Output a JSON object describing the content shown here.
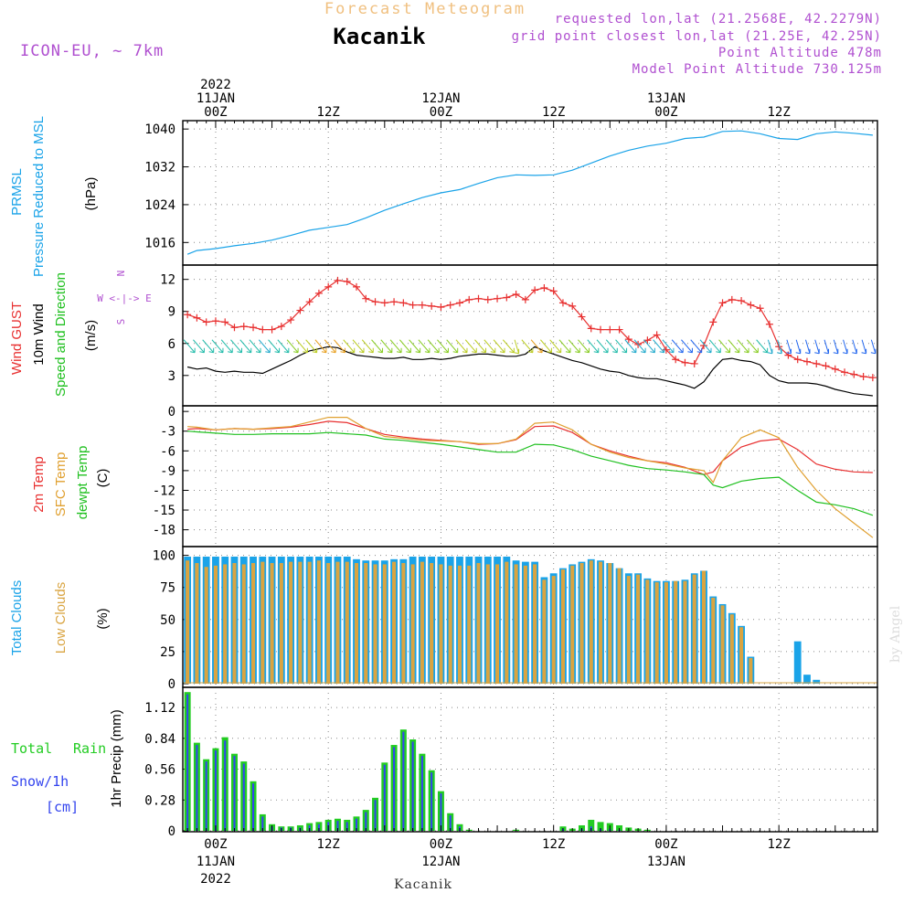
{
  "header": {
    "title": "Forecast Meteogram",
    "location": "Kacanik",
    "model": "ICON-EU, ~ 7km",
    "requested": "requested lon,lat (21.2568E, 42.2279N)",
    "grid_point": "grid point closest lon,lat (21.25E, 42.25N)",
    "point_alt": "Point Altitude 478m",
    "model_alt": "Model Point Altitude 730.125m",
    "footer_location": "Kacanik",
    "watermark": "by Angel"
  },
  "colors": {
    "pressure": "#1aa3e8",
    "gust": "#e83030",
    "wind": "#000000",
    "temp2m": "#e83030",
    "sfctemp": "#e0a030",
    "dewpt": "#20c020",
    "total_clouds": "#1aa3e8",
    "low_clouds": "#d9a441",
    "rain": "#22cc22",
    "snow": "#3344ee",
    "title": "#f0c080",
    "info": "#b050d0"
  },
  "time_axis": {
    "top_labels": [
      {
        "t": 0,
        "lines": [
          "2022",
          "11JAN",
          "00Z"
        ]
      },
      {
        "t": 12,
        "lines": [
          "12Z"
        ]
      },
      {
        "t": 24,
        "lines": [
          "12JAN",
          "00Z"
        ]
      },
      {
        "t": 36,
        "lines": [
          "12Z"
        ]
      },
      {
        "t": 48,
        "lines": [
          "13JAN",
          "00Z"
        ]
      },
      {
        "t": 60,
        "lines": [
          "12Z"
        ]
      }
    ],
    "bottom_labels": [
      {
        "t": 0,
        "lines": [
          "00Z",
          "11JAN",
          "2022"
        ]
      },
      {
        "t": 12,
        "lines": [
          "12Z"
        ]
      },
      {
        "t": 24,
        "lines": [
          "00Z",
          "12JAN"
        ]
      },
      {
        "t": 36,
        "lines": [
          "12Z"
        ]
      },
      {
        "t": 48,
        "lines": [
          "00Z",
          "13JAN"
        ]
      },
      {
        "t": 60,
        "lines": [
          "12Z"
        ]
      }
    ]
  },
  "chart_data": [
    {
      "type": "line",
      "title": "PRMSL Pressure Reduced to MSL",
      "ylabel": "(hPa)",
      "label_lines": [
        "PRMSL",
        "Pressure Reduced to MSL"
      ],
      "yticks": [
        1016,
        1024,
        1032,
        1040
      ],
      "ylim": [
        1012,
        1041
      ],
      "x": [
        -3,
        -2,
        0,
        2,
        4,
        6,
        8,
        10,
        12,
        14,
        16,
        18,
        20,
        22,
        24,
        26,
        28,
        30,
        32,
        34,
        36,
        38,
        40,
        42,
        44,
        46,
        48,
        50,
        52,
        54,
        56,
        58,
        60,
        62,
        64,
        66,
        68,
        70
      ],
      "series": [
        {
          "name": "PRMSL",
          "values": [
            1013.5,
            1014.3,
            1014.7,
            1015.3,
            1015.8,
            1016.5,
            1017.5,
            1018.6,
            1019.2,
            1019.8,
            1021.2,
            1022.8,
            1024.2,
            1025.5,
            1026.5,
            1027.2,
            1028.5,
            1029.7,
            1030.3,
            1030.2,
            1030.3,
            1031.3,
            1032.8,
            1034.3,
            1035.5,
            1036.4,
            1037.0,
            1038.0,
            1038.3,
            1039.5,
            1039.6,
            1039.0,
            1038.0,
            1037.8,
            1039.0,
            1039.4,
            1039.1,
            1038.7
          ]
        }
      ]
    },
    {
      "type": "line",
      "title": "Wind GUST / 10m Wind Speed and Direction",
      "ylabel": "(m/s)",
      "label_lines": [
        "Wind GUST",
        "10m Wind",
        "Speed and Direction"
      ],
      "compass": [
        "N",
        "W <-|-> E",
        "S"
      ],
      "yticks": [
        3,
        6,
        9,
        12
      ],
      "ylim": [
        0.5,
        13
      ],
      "x": [
        -3,
        -2,
        -1,
        0,
        1,
        2,
        3,
        4,
        5,
        6,
        7,
        8,
        9,
        10,
        11,
        12,
        13,
        14,
        15,
        16,
        17,
        18,
        19,
        20,
        21,
        22,
        23,
        24,
        25,
        26,
        27,
        28,
        29,
        30,
        31,
        32,
        33,
        34,
        35,
        36,
        37,
        38,
        39,
        40,
        41,
        42,
        43,
        44,
        45,
        46,
        47,
        48,
        49,
        50,
        51,
        52,
        53,
        54,
        55,
        56,
        57,
        58,
        59,
        60,
        61,
        62,
        63,
        64,
        65,
        66,
        67,
        68,
        69,
        70
      ],
      "series": [
        {
          "name": "Wind GUST",
          "values": [
            8.7,
            8.4,
            8.0,
            8.1,
            8.0,
            7.5,
            7.6,
            7.5,
            7.3,
            7.3,
            7.6,
            8.2,
            9.1,
            9.9,
            10.7,
            11.3,
            11.9,
            11.8,
            11.3,
            10.2,
            9.9,
            9.8,
            9.9,
            9.8,
            9.6,
            9.6,
            9.5,
            9.4,
            9.6,
            9.8,
            10.1,
            10.2,
            10.1,
            10.2,
            10.3,
            10.6,
            10.1,
            11.0,
            11.2,
            10.9,
            9.8,
            9.5,
            8.5,
            7.4,
            7.3,
            7.3,
            7.3,
            6.4,
            5.9,
            6.3,
            6.8,
            5.4,
            4.5,
            4.2,
            4.1,
            5.8,
            8.0,
            9.8,
            10.1,
            10.0,
            9.6,
            9.3,
            7.8,
            5.7,
            4.9,
            4.5,
            4.3,
            4.1,
            3.9,
            3.6,
            3.3,
            3.1,
            2.9,
            2.8
          ]
        },
        {
          "name": "10m Wind",
          "values": [
            3.8,
            3.6,
            3.7,
            3.4,
            3.3,
            3.4,
            3.3,
            3.3,
            3.2,
            3.6,
            4.0,
            4.4,
            4.9,
            5.3,
            5.5,
            5.7,
            5.6,
            5.2,
            4.9,
            4.8,
            4.7,
            4.6,
            4.6,
            4.7,
            4.5,
            4.5,
            4.6,
            4.5,
            4.6,
            4.8,
            4.9,
            5.0,
            5.0,
            4.9,
            4.8,
            4.8,
            5.0,
            5.7,
            5.3,
            5.0,
            4.7,
            4.4,
            4.2,
            3.9,
            3.6,
            3.4,
            3.3,
            3.0,
            2.8,
            2.7,
            2.7,
            2.5,
            2.3,
            2.1,
            1.8,
            2.4,
            3.6,
            4.5,
            4.6,
            4.4,
            4.3,
            4.0,
            3.0,
            2.5,
            2.3,
            2.3,
            2.3,
            2.2,
            2.0,
            1.7,
            1.5,
            1.3,
            1.2,
            1.1
          ]
        }
      ],
      "wind_barb_dir": [
        "NW",
        "NW",
        "NW",
        "NW",
        "NW",
        "NW",
        "NW",
        "NW",
        "NW",
        "NW",
        "NW",
        "NW",
        "NW",
        "NW",
        "NW",
        "NW",
        "NW",
        "NW",
        "NW",
        "NW",
        "NW",
        "NW",
        "NW",
        "NW",
        "NW",
        "NW",
        "NW",
        "NW",
        "NW",
        "NW",
        "NW",
        "NW",
        "NW",
        "NW",
        "NW",
        "N",
        "NW",
        "NW",
        "NW",
        "NW",
        "NW",
        "NW",
        "NW",
        "NW",
        "NW",
        "NW",
        "NW",
        "NW",
        "NW",
        "NW",
        "NW",
        "NW",
        "NW",
        "NW",
        "NW",
        "NW",
        "NW",
        "NW",
        "NW",
        "NW",
        "NW",
        "NW",
        "N",
        "N",
        "N",
        "N",
        "N",
        "N",
        "N",
        "N",
        "N",
        "N",
        "N",
        "N"
      ]
    },
    {
      "type": "line",
      "title": "2m Temp / SFC Temp / dewpt Temp",
      "ylabel": "(C)",
      "label_lines": [
        "2m Temp",
        "SFC Temp",
        "dewpt Temp"
      ],
      "yticks": [
        0,
        -3,
        -6,
        -9,
        -12,
        -15,
        -18
      ],
      "ylim": [
        -20,
        0.3
      ],
      "x": [
        -3,
        -2,
        0,
        2,
        4,
        6,
        8,
        10,
        12,
        14,
        16,
        18,
        20,
        22,
        24,
        26,
        28,
        30,
        32,
        34,
        36,
        38,
        40,
        42,
        44,
        46,
        48,
        50,
        52,
        53,
        54,
        56,
        58,
        60,
        62,
        64,
        66,
        68,
        70
      ],
      "series": [
        {
          "name": "2m Temp",
          "values": [
            -2.7,
            -2.6,
            -2.8,
            -2.6,
            -2.7,
            -2.6,
            -2.4,
            -2.0,
            -1.5,
            -1.7,
            -2.6,
            -3.5,
            -3.9,
            -4.2,
            -4.4,
            -4.6,
            -5.0,
            -4.9,
            -4.3,
            -2.3,
            -2.2,
            -3.2,
            -5.0,
            -6.0,
            -6.8,
            -7.5,
            -7.8,
            -8.5,
            -9.6,
            -9.2,
            -7.5,
            -5.4,
            -4.5,
            -4.2,
            -5.8,
            -8.0,
            -8.8,
            -9.2,
            -9.3
          ]
        },
        {
          "name": "SFC Temp",
          "values": [
            -2.3,
            -2.4,
            -2.8,
            -2.6,
            -2.7,
            -2.5,
            -2.3,
            -1.6,
            -0.9,
            -0.9,
            -2.6,
            -3.8,
            -4.1,
            -4.4,
            -4.5,
            -4.6,
            -4.9,
            -4.9,
            -4.2,
            -1.8,
            -1.6,
            -2.8,
            -5.0,
            -6.2,
            -7.0,
            -7.5,
            -8.0,
            -8.6,
            -9.0,
            -10.8,
            -7.5,
            -4.0,
            -2.8,
            -4.0,
            -8.5,
            -12.0,
            -14.8,
            -17.0,
            -19.2
          ]
        },
        {
          "name": "dewpt Temp",
          "values": [
            -3.0,
            -3.1,
            -3.3,
            -3.5,
            -3.5,
            -3.4,
            -3.4,
            -3.4,
            -3.2,
            -3.4,
            -3.6,
            -4.2,
            -4.4,
            -4.7,
            -5.0,
            -5.4,
            -5.8,
            -6.2,
            -6.2,
            -5.0,
            -5.1,
            -5.8,
            -6.8,
            -7.5,
            -8.2,
            -8.7,
            -8.9,
            -9.2,
            -9.6,
            -11.2,
            -11.6,
            -10.6,
            -10.2,
            -10.0,
            -12.0,
            -13.8,
            -14.2,
            -14.8,
            -15.8
          ]
        }
      ]
    },
    {
      "type": "bar",
      "title": "Total Clouds / Low Clouds",
      "ylabel": "(%)",
      "label_lines": [
        "Total Clouds",
        "Low Clouds"
      ],
      "yticks": [
        0,
        25,
        50,
        75,
        100
      ],
      "ylim": [
        0,
        104
      ],
      "x": [
        -3,
        -2,
        -1,
        0,
        1,
        2,
        3,
        4,
        5,
        6,
        7,
        8,
        9,
        10,
        11,
        12,
        13,
        14,
        15,
        16,
        17,
        18,
        19,
        20,
        21,
        22,
        23,
        24,
        25,
        26,
        27,
        28,
        29,
        30,
        31,
        32,
        33,
        34,
        35,
        36,
        37,
        38,
        39,
        40,
        41,
        42,
        43,
        44,
        45,
        46,
        47,
        48,
        49,
        50,
        51,
        52,
        53,
        54,
        55,
        56,
        57,
        58,
        59,
        60,
        61,
        62,
        63,
        64,
        65,
        66,
        67,
        68,
        69,
        70
      ],
      "series": [
        {
          "name": "Total Clouds",
          "values": [
            99,
            99,
            99,
            99,
            99,
            99,
            99,
            99,
            99,
            99,
            99,
            99,
            99,
            99,
            99,
            99,
            99,
            99,
            97,
            96,
            96,
            96,
            97,
            97,
            99,
            99,
            99,
            99,
            99,
            99,
            99,
            99,
            99,
            99,
            99,
            96,
            95,
            95,
            83,
            86,
            90,
            93,
            95,
            97,
            96,
            94,
            90,
            86,
            86,
            82,
            80,
            80,
            80,
            81,
            86,
            88,
            68,
            62,
            55,
            45,
            21,
            0,
            0,
            0,
            0,
            33,
            7,
            3,
            0,
            0,
            0,
            0,
            0,
            0
          ]
        },
        {
          "name": "Low Clouds",
          "values": [
            96,
            94,
            91,
            92,
            93,
            94,
            93,
            94,
            95,
            94,
            94,
            95,
            95,
            95,
            96,
            94,
            95,
            95,
            94,
            94,
            93,
            93,
            95,
            94,
            93,
            95,
            94,
            93,
            92,
            92,
            92,
            94,
            93,
            93,
            95,
            93,
            92,
            93,
            81,
            84,
            89,
            92,
            94,
            96,
            95,
            94,
            90,
            84,
            85,
            81,
            79,
            79,
            80,
            80,
            85,
            88,
            67,
            61,
            54,
            44,
            20,
            0,
            0,
            0,
            0,
            0,
            0,
            0,
            0,
            0,
            0,
            0,
            0,
            0
          ]
        }
      ]
    },
    {
      "type": "bar",
      "title": "Total Rain / Snow/1h [cm]",
      "ylabel": "1hr Precip (mm)",
      "label_lines": [
        "Total",
        "Rain",
        "Snow/1h",
        "[cm]"
      ],
      "yticks": [
        0,
        0.28,
        0.56,
        0.84,
        1.12
      ],
      "ylim": [
        0,
        1.27
      ],
      "x": [
        -3,
        -2,
        -1,
        0,
        1,
        2,
        3,
        4,
        5,
        6,
        7,
        8,
        9,
        10,
        11,
        12,
        13,
        14,
        15,
        16,
        17,
        18,
        19,
        20,
        21,
        22,
        23,
        24,
        25,
        26,
        27,
        28,
        29,
        30,
        31,
        32,
        33,
        34,
        35,
        36,
        37,
        38,
        39,
        40,
        41,
        42,
        43,
        44,
        45,
        46,
        47,
        48,
        49,
        50,
        51,
        52,
        53,
        54,
        55,
        56,
        57,
        58,
        59,
        60,
        61,
        62,
        63,
        64,
        65,
        66,
        67,
        68,
        69,
        70
      ],
      "series": [
        {
          "name": "Total Rain",
          "values": [
            1.26,
            0.8,
            0.65,
            0.75,
            0.85,
            0.7,
            0.63,
            0.45,
            0.15,
            0.06,
            0.04,
            0.04,
            0.05,
            0.07,
            0.08,
            0.1,
            0.11,
            0.1,
            0.13,
            0.19,
            0.3,
            0.62,
            0.78,
            0.92,
            0.83,
            0.7,
            0.55,
            0.36,
            0.16,
            0.06,
            0.01,
            0,
            0,
            0,
            0,
            0.01,
            0,
            0,
            0,
            0,
            0.04,
            0.02,
            0.05,
            0.1,
            0.08,
            0.07,
            0.05,
            0.03,
            0.02,
            0.01,
            0,
            0,
            0,
            0,
            0,
            0,
            0,
            0,
            0,
            0,
            0,
            0,
            0,
            0,
            0,
            0,
            0,
            0,
            0,
            0,
            0,
            0,
            0,
            0
          ]
        },
        {
          "name": "Snow/1h",
          "values": [
            1.24,
            0.78,
            0.63,
            0.73,
            0.82,
            0.68,
            0.61,
            0.43,
            0.13,
            0.04,
            0.03,
            0.03,
            0.03,
            0.05,
            0.06,
            0.08,
            0.09,
            0.08,
            0.11,
            0.17,
            0.28,
            0.6,
            0.76,
            0.9,
            0.81,
            0.68,
            0.53,
            0.34,
            0.14,
            0.04,
            0,
            0,
            0,
            0,
            0,
            0,
            0,
            0,
            0,
            0,
            0.02,
            0,
            0.02,
            0.04,
            0.02,
            0.02,
            0.01,
            0,
            0,
            0,
            0,
            0,
            0,
            0,
            0,
            0,
            0,
            0,
            0,
            0,
            0,
            0,
            0,
            0,
            0,
            0,
            0,
            0,
            0,
            0,
            0,
            0,
            0,
            0
          ]
        }
      ]
    }
  ]
}
